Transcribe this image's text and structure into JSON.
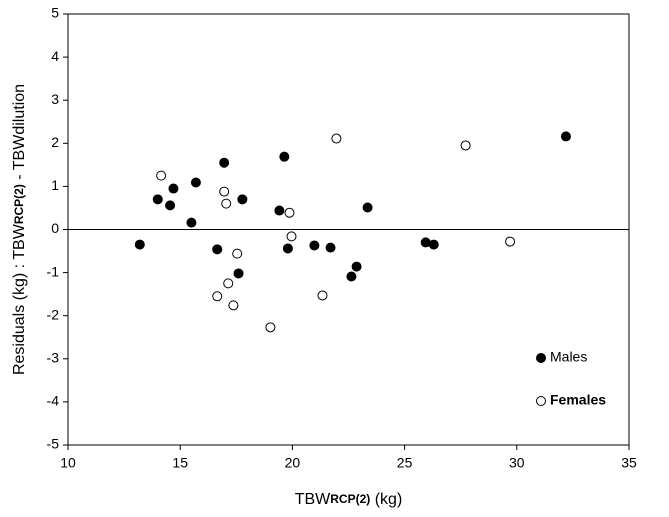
{
  "chart_data": {
    "type": "scatter",
    "x_label": [
      "TBW",
      "RCP(2)",
      " (kg)"
    ],
    "y_label": [
      "Residuals (kg)  : TBW",
      "RCP(2)",
      " - TBWdilution"
    ],
    "xlim": [
      10,
      35
    ],
    "xticks": [
      10,
      15,
      20,
      25,
      30,
      35
    ],
    "ylim": [
      -5,
      5
    ],
    "yticks": [
      -5,
      -4,
      -3,
      -2,
      -1,
      0,
      1,
      2,
      3,
      4,
      5
    ],
    "reference_line": 0,
    "legend": "lower right",
    "series": [
      {
        "name": "Males",
        "color": "#000000",
        "filled": true,
        "x": [
          13.2,
          14.0,
          14.55,
          14.7,
          15.5,
          15.7,
          16.65,
          16.96,
          17.77,
          17.6,
          19.42,
          19.64,
          19.8,
          20.98,
          21.7,
          22.63,
          22.86,
          23.35,
          25.94,
          26.3,
          32.19
        ],
        "values": [
          -0.35,
          0.7,
          0.56,
          0.95,
          0.16,
          1.09,
          -0.46,
          1.55,
          0.7,
          -1.02,
          0.44,
          1.69,
          -0.44,
          -0.37,
          -0.42,
          -1.09,
          -0.86,
          0.51,
          -0.3,
          -0.35,
          2.16
        ]
      },
      {
        "name": "Females",
        "color": "#000000",
        "filled": false,
        "x": [
          14.15,
          16.96,
          17.05,
          17.54,
          16.65,
          17.14,
          17.37,
          19.87,
          19.96,
          19.02,
          21.34,
          21.96,
          27.72,
          29.7
        ],
        "values": [
          1.25,
          0.88,
          0.6,
          -0.56,
          -1.55,
          -1.25,
          -1.76,
          0.39,
          -0.16,
          -2.27,
          -1.53,
          2.11,
          1.95,
          -0.28
        ]
      }
    ]
  }
}
